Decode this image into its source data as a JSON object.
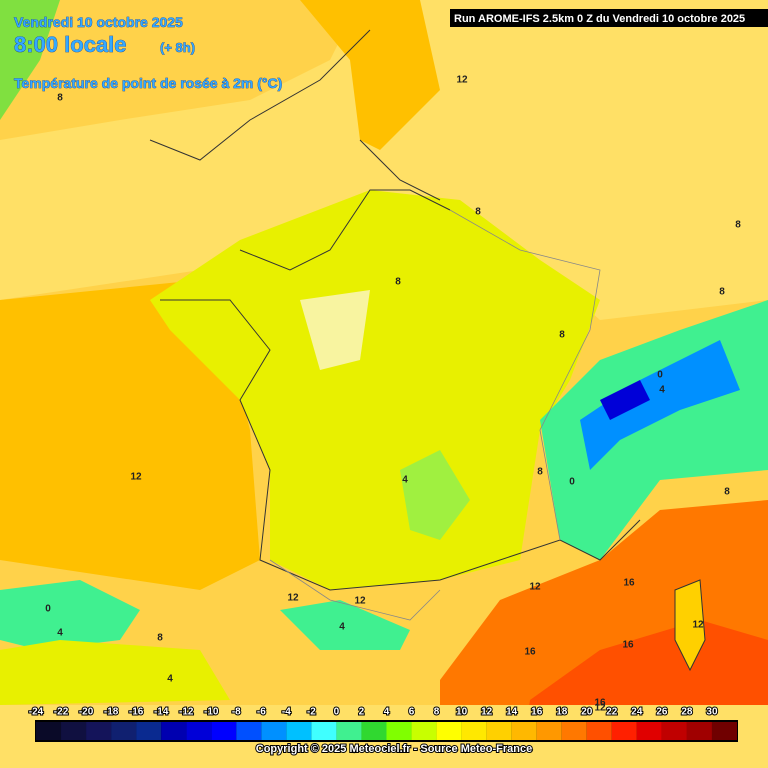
{
  "header": {
    "date": "Vendredi 10 octobre 2025",
    "time": "8:00 locale",
    "lead": "(+ 8h)",
    "variable": "Température de point de rosée à 2m (°C)",
    "run": "Run AROME-IFS 2.5km 0 Z du Vendredi 10 octobre 2025"
  },
  "contour_labels": [
    12,
    8,
    8,
    8,
    8,
    8,
    4,
    0,
    4,
    12,
    8,
    0,
    12,
    16,
    16,
    16,
    12,
    12,
    12,
    0,
    4,
    8,
    4,
    4,
    12,
    16,
    8,
    8
  ],
  "legend": {
    "values": [
      -24,
      -22,
      -20,
      -18,
      -16,
      -14,
      -12,
      -10,
      -8,
      -6,
      -4,
      -2,
      0,
      2,
      4,
      6,
      8,
      10,
      12,
      14,
      16,
      18,
      20,
      22,
      24,
      26,
      28,
      30
    ],
    "colors": [
      "#0a0a28",
      "#101040",
      "#14145a",
      "#102070",
      "#0a2a90",
      "#0000b0",
      "#0000d8",
      "#0000ff",
      "#0050ff",
      "#0090ff",
      "#00c0ff",
      "#40ffff",
      "#40f090",
      "#30d830",
      "#80ff00",
      "#c8ff00",
      "#ffff00",
      "#ffe800",
      "#ffd000",
      "#ffb800",
      "#ff9800",
      "#ff7800",
      "#ff5000",
      "#ff2000",
      "#e00000",
      "#c00000",
      "#a00000",
      "#700000"
    ]
  },
  "footer": {
    "copyright": "Copyright © 2025 Meteociel.fr - Source Meteo-France"
  }
}
